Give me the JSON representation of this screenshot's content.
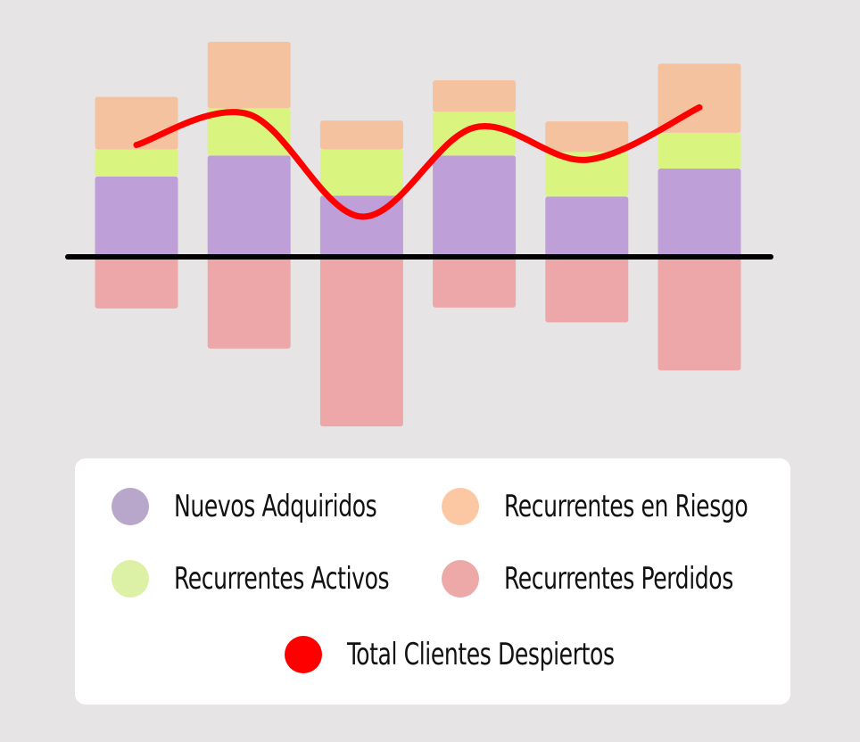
{
  "chart_data": {
    "type": "bar",
    "stacked": true,
    "categories": [
      "",
      "",
      "",
      "",
      "",
      ""
    ],
    "series": [
      {
        "name": "Nuevos Adquiridos",
        "values": [
          92,
          116,
          70,
          116,
          69,
          101
        ],
        "color": "#bf9fd8"
      },
      {
        "name": "Recurrentes Activos",
        "values": [
          31,
          54,
          53,
          50,
          51,
          41
        ],
        "color": "#d9f47f"
      },
      {
        "name": "Recurrentes en Riesgo",
        "values": [
          60,
          76,
          33,
          36,
          35,
          79
        ],
        "color": "#f4c29e"
      },
      {
        "name": "Recurrentes Perdidos",
        "values": [
          -59,
          -105,
          -194,
          -58,
          -75,
          -130
        ],
        "color": "#eda7a8"
      }
    ],
    "line_series": {
      "name": "Total Clientes Despiertos",
      "values": [
        128,
        163,
        46,
        148,
        111,
        171
      ],
      "color": "#ff0000"
    },
    "ylim": [
      -200,
      250
    ],
    "grid": false,
    "zero_line": true,
    "legend_position": "bottom"
  },
  "legend": {
    "items": [
      {
        "label": "Nuevos Adquiridos",
        "color": "#b9a7cb"
      },
      {
        "label": "Recurrentes en Riesgo",
        "color": "#fcc8a4"
      },
      {
        "label": "Recurrentes Activos",
        "color": "#dcf1a5"
      },
      {
        "label": "Recurrentes Perdidos",
        "color": "#eda8a8"
      },
      {
        "label": "Total Clientes Despiertos",
        "color": "#ff0000"
      }
    ]
  }
}
